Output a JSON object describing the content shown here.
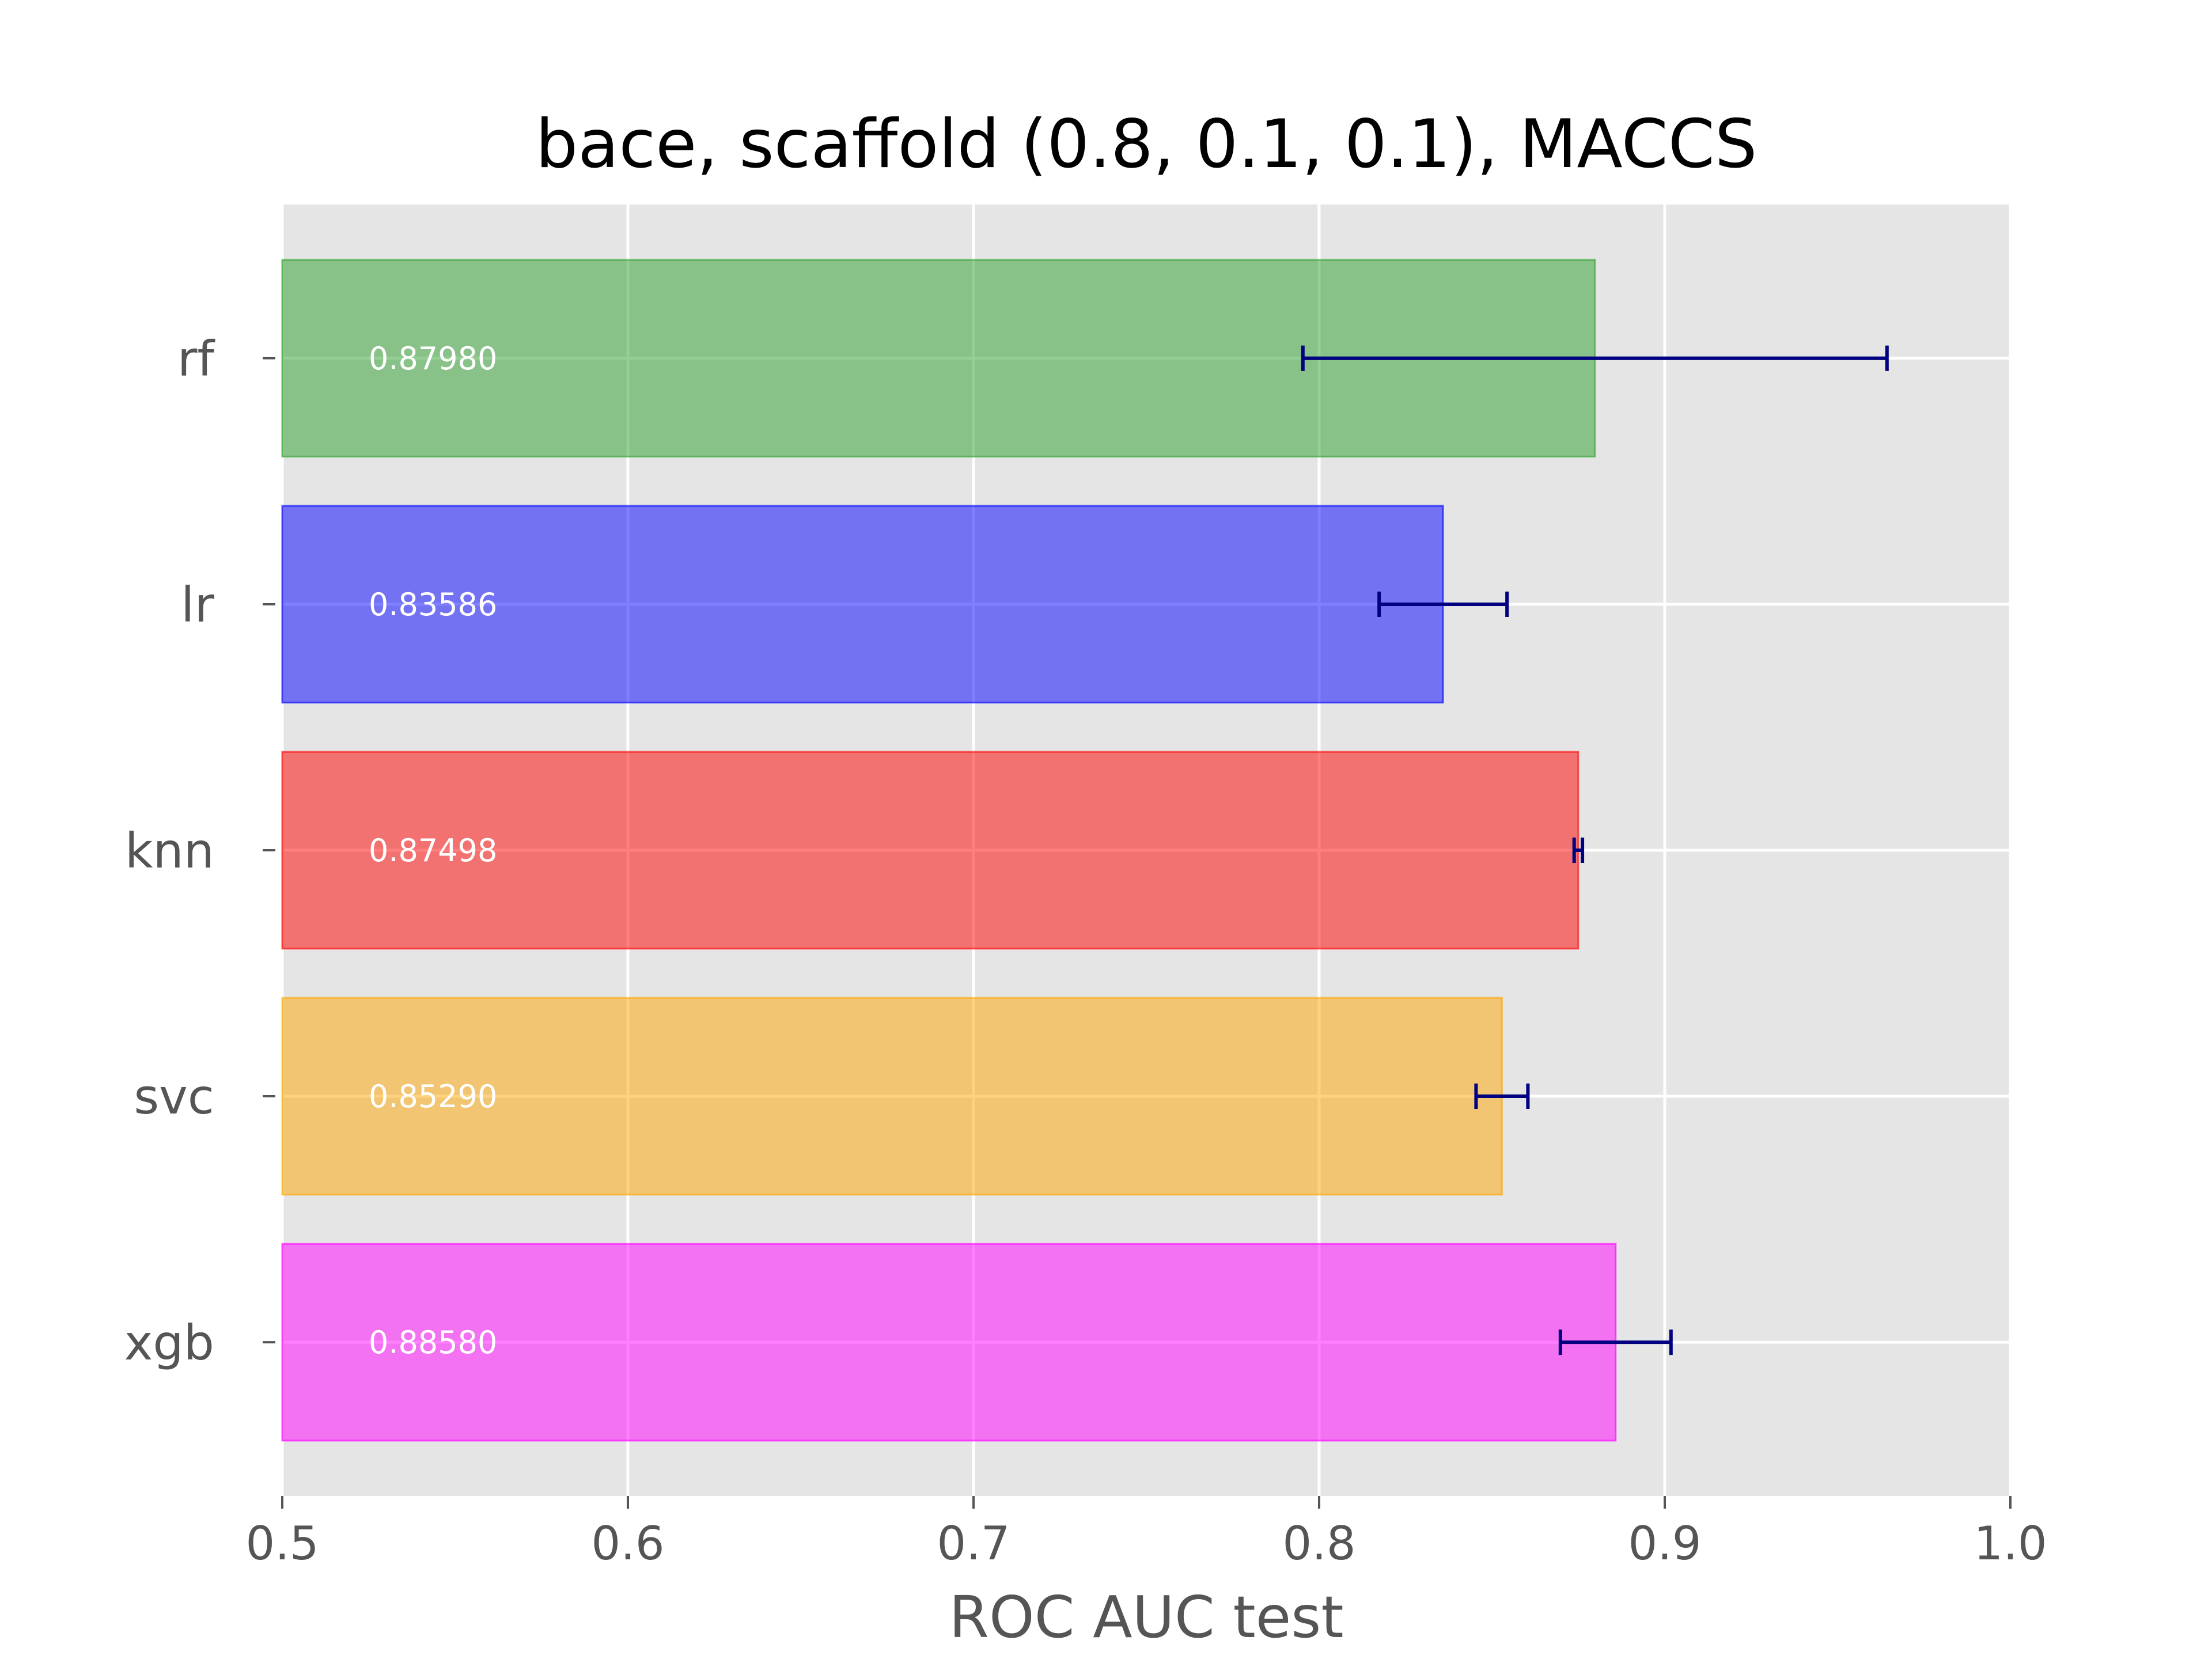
{
  "chart_data": {
    "type": "bar",
    "orientation": "horizontal",
    "title": "bace, scaffold (0.8, 0.1, 0.1), MACCS",
    "xlabel": "ROC AUC test",
    "ylabel": "",
    "xlim": [
      0.5,
      1.0
    ],
    "xticks": [
      0.5,
      0.6,
      0.7,
      0.8,
      0.9,
      1.0
    ],
    "xtick_labels": [
      "0.5",
      "0.6",
      "0.7",
      "0.8",
      "0.9",
      "1.0"
    ],
    "grid": true,
    "categories": [
      "rf",
      "lr",
      "knn",
      "svc",
      "xgb"
    ],
    "values": [
      0.8798,
      0.83586,
      0.87498,
      0.8529,
      0.8858
    ],
    "value_labels": [
      "0.87980",
      "0.83586",
      "0.87498",
      "0.85290",
      "0.88580"
    ],
    "errors": [
      0.0845,
      0.0185,
      0.0012,
      0.0075,
      0.016
    ],
    "colors": [
      "#2ca02c",
      "#0000ff",
      "#ff0000",
      "#ffa500",
      "#ff00ff"
    ],
    "bar_alpha": 0.5,
    "error_color": "#000080",
    "background_color": "#e5e5e5",
    "grid_color": "#ffffff"
  }
}
